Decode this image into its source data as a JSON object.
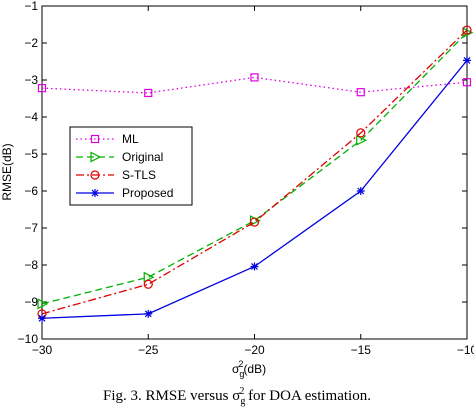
{
  "chart_data": {
    "type": "line",
    "x": [
      -30,
      -25,
      -20,
      -15,
      -10
    ],
    "xlim": [
      -30,
      -10
    ],
    "ylim": [
      -10,
      -1
    ],
    "xticks": [
      -30,
      -25,
      -20,
      -15,
      -10
    ],
    "yticks": [
      -1,
      -2,
      -3,
      -4,
      -5,
      -6,
      -7,
      -8,
      -9,
      -10
    ],
    "xlabel": "σ_g^2(dB)",
    "ylabel": "RMSE(dB)",
    "grid": false,
    "legend_position": "center-left",
    "series": [
      {
        "name": "ML",
        "color": "#e000e0",
        "dash": "dotted",
        "marker": "square",
        "values": [
          -3.22,
          -3.35,
          -2.93,
          -3.33,
          -3.06
        ]
      },
      {
        "name": "Original",
        "color": "#00b000",
        "dash": "dashed",
        "marker": "triangle-right",
        "values": [
          -9.05,
          -8.33,
          -6.8,
          -4.63,
          -1.72
        ]
      },
      {
        "name": "S-TLS",
        "color": "#e00000",
        "dash": "dashdot",
        "marker": "circle",
        "values": [
          -9.32,
          -8.52,
          -6.84,
          -4.43,
          -1.65
        ]
      },
      {
        "name": "Proposed",
        "color": "#0000e0",
        "dash": "solid",
        "marker": "star",
        "values": [
          -9.44,
          -9.32,
          -8.04,
          -6.0,
          -2.47
        ]
      }
    ]
  },
  "caption": "Fig. 3.   RMSE versus σ",
  "caption_sub": "g",
  "caption_sup": "2",
  "caption_end": " for DOA estimation."
}
